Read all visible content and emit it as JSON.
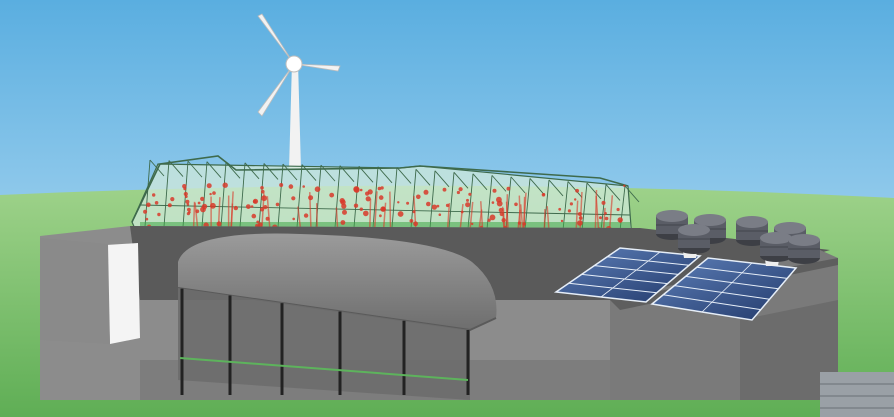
{
  "scene": {
    "subject": "rooftop-greenhouse-building",
    "elements": [
      "sky",
      "grass-field",
      "wind-turbine",
      "greenhouse",
      "tomato-plants",
      "curved-canopy",
      "solar-panels",
      "rooftop-fans",
      "concrete-building",
      "warehouse-block"
    ]
  },
  "colors": {
    "sky_top": "#5aaee0",
    "sky_bottom": "#c9e6f7",
    "grass_light": "#9ed28a",
    "grass_dark": "#5fae55",
    "building": "#8a8a8a",
    "building_dark": "#6c6c6c",
    "roof": "#4a4a4a",
    "greenhouse_frame": "#3e6a4c",
    "glass": "#cfe8d9",
    "plant_green": "#3fa847",
    "tomato_red": "#d83a2a",
    "solar_blue": "#2f4f86",
    "fan": "#5a5d66",
    "turbine": "#f2f2f2"
  }
}
